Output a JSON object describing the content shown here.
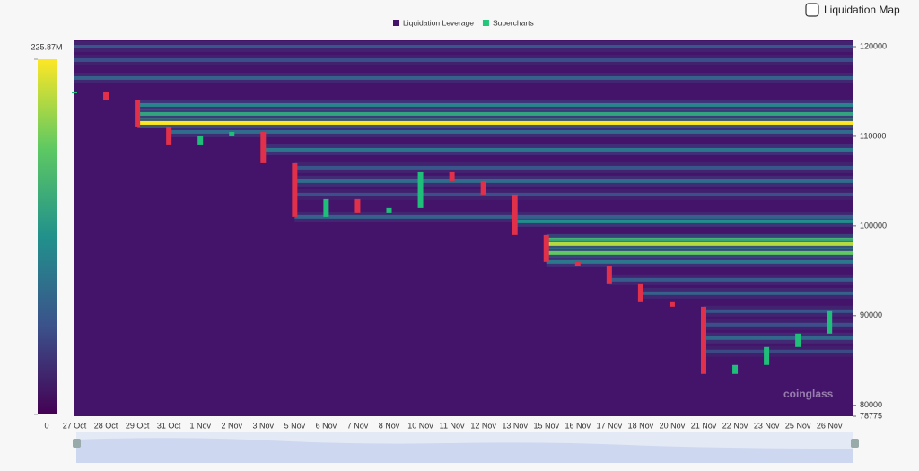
{
  "chart_data": {
    "type": "heatmap",
    "title": "Liquidation Map",
    "legend": [
      "Liquidation Leverage",
      "Supercharts"
    ],
    "legend_colors": [
      "#44146b",
      "#22c77a"
    ],
    "watermark": "coinglass",
    "categories": [
      "27 Oct",
      "28 Oct",
      "29 Oct",
      "31 Oct",
      "1 Nov",
      "2 Nov",
      "3 Nov",
      "5 Nov",
      "6 Nov",
      "7 Nov",
      "8 Nov",
      "10 Nov",
      "11 Nov",
      "12 Nov",
      "13 Nov",
      "15 Nov",
      "16 Nov",
      "17 Nov",
      "18 Nov",
      "20 Nov",
      "21 Nov",
      "22 Nov",
      "23 Nov",
      "25 Nov",
      "26 Nov"
    ],
    "price": [
      115000,
      114000,
      111000,
      109000,
      110000,
      110500,
      107000,
      101000,
      103000,
      101500,
      102000,
      106000,
      105000,
      103500,
      99000,
      96000,
      95500,
      93500,
      91500,
      91000,
      83500,
      84500,
      86500,
      88000,
      90500
    ],
    "levels": [
      120000,
      118500,
      116500,
      113500,
      112500,
      111500,
      110500,
      108500,
      106500,
      105000,
      103500,
      101000,
      100500,
      98500,
      98000,
      97000,
      96000,
      94000,
      92500,
      90500,
      89000,
      87500,
      86000
    ],
    "level_values": [
      60,
      55,
      70,
      100,
      130,
      225.87,
      80,
      90,
      60,
      80,
      55,
      70,
      110,
      150,
      200,
      170,
      90,
      65,
      70,
      60,
      55,
      75,
      50
    ],
    "ylim": [
      78775,
      120700
    ],
    "yticks": [
      78775,
      80000,
      90000,
      100000,
      110000,
      120000
    ],
    "zlim": [
      0,
      225.87
    ],
    "zticks": [
      0,
      {
        "value": 225.87,
        "label": "225.87M"
      }
    ]
  }
}
